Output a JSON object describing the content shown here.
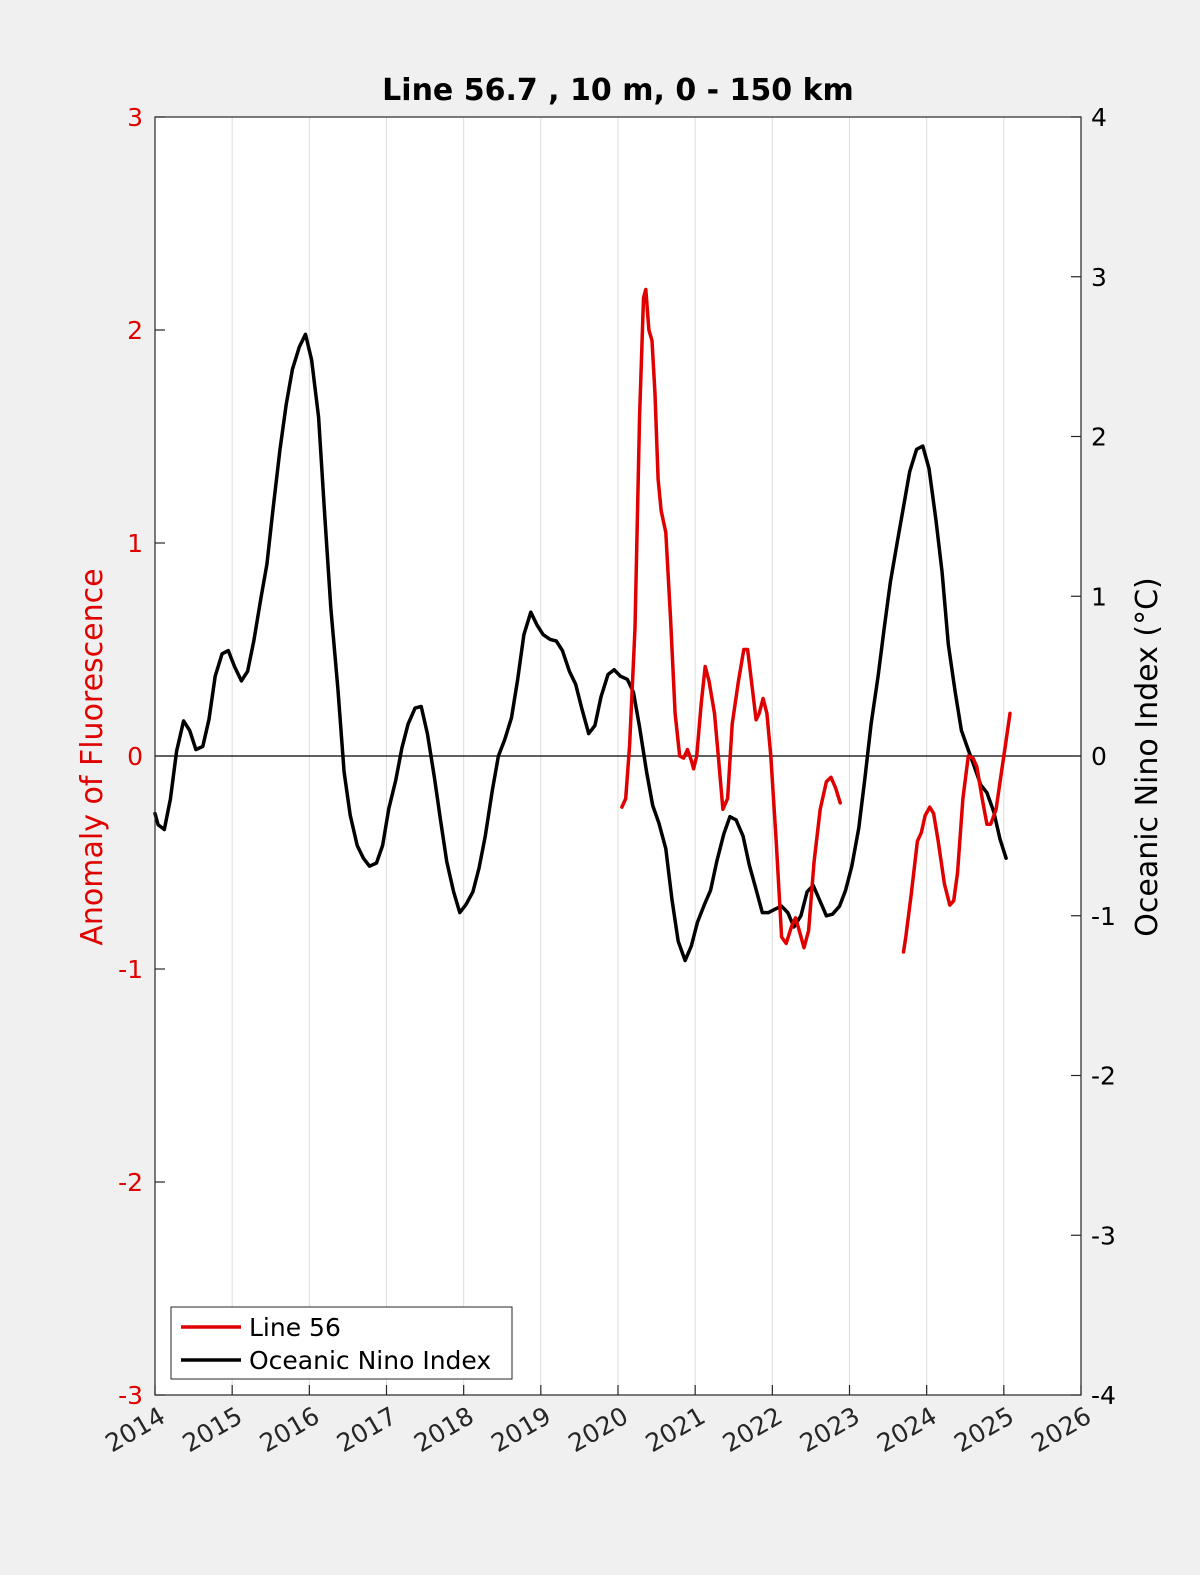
{
  "chart_data": {
    "type": "line",
    "title": "Line 56.7 , 10 m, 0 - 150 km",
    "xlabel": "",
    "ylabel_left": "Anomaly of Fluorescence",
    "ylabel_right": "Oceanic Nino Index (°C)",
    "xlim": [
      2014,
      2026
    ],
    "ylim_left": [
      -3,
      3
    ],
    "ylim_right": [
      -4,
      4
    ],
    "x_ticks": [
      "2014",
      "2015",
      "2016",
      "2017",
      "2018",
      "2019",
      "2020",
      "2021",
      "2022",
      "2023",
      "2024",
      "2025",
      "2026"
    ],
    "left_ticks": [
      "-3",
      "-2",
      "-1",
      "0",
      "1",
      "2",
      "3"
    ],
    "right_ticks": [
      "-4",
      "-3",
      "-2",
      "-1",
      "0",
      "1",
      "2",
      "3",
      "4"
    ],
    "grid": "vertical",
    "legend_position": "bottom-left",
    "colors": {
      "left_axis": "#e00000",
      "line56": "#e00000",
      "oni": "#000000"
    },
    "series": [
      {
        "name": "Line 56",
        "axis": "left",
        "segments": [
          [
            [
              2020.05,
              -0.24
            ],
            [
              2020.1,
              -0.2
            ],
            [
              2020.15,
              0.05
            ],
            [
              2020.22,
              0.6
            ],
            [
              2020.28,
              1.6
            ],
            [
              2020.33,
              2.15
            ],
            [
              2020.36,
              2.19
            ],
            [
              2020.4,
              2.0
            ],
            [
              2020.44,
              1.95
            ],
            [
              2020.48,
              1.7
            ],
            [
              2020.52,
              1.3
            ],
            [
              2020.56,
              1.15
            ],
            [
              2020.62,
              1.05
            ],
            [
              2020.68,
              0.65
            ],
            [
              2020.74,
              0.2
            ],
            [
              2020.8,
              0.0
            ],
            [
              2020.85,
              -0.01
            ],
            [
              2020.9,
              0.03
            ],
            [
              2020.95,
              -0.02
            ],
            [
              2020.98,
              -0.06
            ],
            [
              2021.02,
              0.0
            ],
            [
              2021.08,
              0.25
            ],
            [
              2021.13,
              0.42
            ],
            [
              2021.18,
              0.35
            ],
            [
              2021.25,
              0.2
            ],
            [
              2021.3,
              0.0
            ],
            [
              2021.36,
              -0.25
            ],
            [
              2021.42,
              -0.2
            ],
            [
              2021.48,
              0.15
            ],
            [
              2021.56,
              0.35
            ],
            [
              2021.63,
              0.5
            ],
            [
              2021.68,
              0.5
            ],
            [
              2021.73,
              0.35
            ],
            [
              2021.79,
              0.17
            ],
            [
              2021.83,
              0.2
            ],
            [
              2021.88,
              0.27
            ],
            [
              2021.93,
              0.2
            ],
            [
              2021.98,
              0.0
            ],
            [
              2022.05,
              -0.4
            ],
            [
              2022.12,
              -0.85
            ],
            [
              2022.18,
              -0.88
            ],
            [
              2022.25,
              -0.8
            ],
            [
              2022.3,
              -0.76
            ],
            [
              2022.35,
              -0.82
            ],
            [
              2022.41,
              -0.9
            ],
            [
              2022.47,
              -0.82
            ],
            [
              2022.54,
              -0.5
            ],
            [
              2022.62,
              -0.25
            ],
            [
              2022.7,
              -0.12
            ],
            [
              2022.76,
              -0.1
            ],
            [
              2022.82,
              -0.15
            ],
            [
              2022.88,
              -0.22
            ]
          ],
          [
            [
              2023.7,
              -0.92
            ],
            [
              2023.73,
              -0.85
            ],
            [
              2023.8,
              -0.65
            ],
            [
              2023.88,
              -0.4
            ],
            [
              2023.93,
              -0.36
            ],
            [
              2023.98,
              -0.28
            ],
            [
              2024.04,
              -0.24
            ],
            [
              2024.09,
              -0.27
            ],
            [
              2024.15,
              -0.4
            ],
            [
              2024.23,
              -0.6
            ],
            [
              2024.3,
              -0.7
            ],
            [
              2024.35,
              -0.68
            ],
            [
              2024.4,
              -0.55
            ],
            [
              2024.47,
              -0.2
            ],
            [
              2024.54,
              0.0
            ],
            [
              2024.6,
              -0.01
            ],
            [
              2024.65,
              -0.05
            ],
            [
              2024.72,
              -0.2
            ],
            [
              2024.78,
              -0.32
            ],
            [
              2024.83,
              -0.32
            ],
            [
              2024.9,
              -0.25
            ],
            [
              2024.96,
              -0.1
            ],
            [
              2025.02,
              0.05
            ],
            [
              2025.08,
              0.2
            ]
          ]
        ]
      },
      {
        "name": "Oceanic Nino Index",
        "axis": "right",
        "points": [
          [
            2014.0,
            -0.36
          ],
          [
            2014.04,
            -0.43
          ],
          [
            2014.12,
            -0.46
          ],
          [
            2014.2,
            -0.27
          ],
          [
            2014.28,
            0.03
          ],
          [
            2014.37,
            0.22
          ],
          [
            2014.45,
            0.16
          ],
          [
            2014.53,
            0.04
          ],
          [
            2014.62,
            0.06
          ],
          [
            2014.7,
            0.23
          ],
          [
            2014.78,
            0.5
          ],
          [
            2014.87,
            0.64
          ],
          [
            2014.95,
            0.66
          ],
          [
            2015.03,
            0.56
          ],
          [
            2015.12,
            0.47
          ],
          [
            2015.2,
            0.53
          ],
          [
            2015.28,
            0.72
          ],
          [
            2015.37,
            0.98
          ],
          [
            2015.45,
            1.2
          ],
          [
            2015.53,
            1.55
          ],
          [
            2015.62,
            1.92
          ],
          [
            2015.7,
            2.2
          ],
          [
            2015.78,
            2.42
          ],
          [
            2015.87,
            2.56
          ],
          [
            2015.95,
            2.64
          ],
          [
            2016.03,
            2.48
          ],
          [
            2016.12,
            2.12
          ],
          [
            2016.2,
            1.5
          ],
          [
            2016.28,
            0.92
          ],
          [
            2016.37,
            0.42
          ],
          [
            2016.45,
            -0.1
          ],
          [
            2016.53,
            -0.37
          ],
          [
            2016.62,
            -0.56
          ],
          [
            2016.7,
            -0.64
          ],
          [
            2016.78,
            -0.69
          ],
          [
            2016.87,
            -0.67
          ],
          [
            2016.95,
            -0.56
          ],
          [
            2017.03,
            -0.33
          ],
          [
            2017.12,
            -0.15
          ],
          [
            2017.2,
            0.05
          ],
          [
            2017.28,
            0.2
          ],
          [
            2017.37,
            0.3
          ],
          [
            2017.45,
            0.31
          ],
          [
            2017.53,
            0.14
          ],
          [
            2017.62,
            -0.13
          ],
          [
            2017.7,
            -0.4
          ],
          [
            2017.78,
            -0.66
          ],
          [
            2017.87,
            -0.85
          ],
          [
            2017.95,
            -0.98
          ],
          [
            2018.03,
            -0.93
          ],
          [
            2018.12,
            -0.85
          ],
          [
            2018.2,
            -0.7
          ],
          [
            2018.28,
            -0.5
          ],
          [
            2018.37,
            -0.22
          ],
          [
            2018.45,
            0.0
          ],
          [
            2018.53,
            0.1
          ],
          [
            2018.62,
            0.24
          ],
          [
            2018.7,
            0.48
          ],
          [
            2018.78,
            0.76
          ],
          [
            2018.87,
            0.9
          ],
          [
            2018.95,
            0.82
          ],
          [
            2019.03,
            0.76
          ],
          [
            2019.12,
            0.73
          ],
          [
            2019.2,
            0.72
          ],
          [
            2019.28,
            0.66
          ],
          [
            2019.37,
            0.53
          ],
          [
            2019.45,
            0.45
          ],
          [
            2019.53,
            0.3
          ],
          [
            2019.62,
            0.14
          ],
          [
            2019.7,
            0.19
          ],
          [
            2019.78,
            0.37
          ],
          [
            2019.87,
            0.51
          ],
          [
            2019.95,
            0.54
          ],
          [
            2020.03,
            0.5
          ],
          [
            2020.12,
            0.48
          ],
          [
            2020.2,
            0.4
          ],
          [
            2020.28,
            0.18
          ],
          [
            2020.37,
            -0.1
          ],
          [
            2020.45,
            -0.31
          ],
          [
            2020.53,
            -0.42
          ],
          [
            2020.62,
            -0.58
          ],
          [
            2020.7,
            -0.9
          ],
          [
            2020.78,
            -1.16
          ],
          [
            2020.87,
            -1.28
          ],
          [
            2020.95,
            -1.19
          ],
          [
            2021.03,
            -1.04
          ],
          [
            2021.12,
            -0.93
          ],
          [
            2021.2,
            -0.84
          ],
          [
            2021.28,
            -0.66
          ],
          [
            2021.37,
            -0.49
          ],
          [
            2021.45,
            -0.38
          ],
          [
            2021.53,
            -0.4
          ],
          [
            2021.62,
            -0.5
          ],
          [
            2021.7,
            -0.68
          ],
          [
            2021.78,
            -0.82
          ],
          [
            2021.87,
            -0.98
          ],
          [
            2021.95,
            -0.98
          ],
          [
            2022.03,
            -0.96
          ],
          [
            2022.12,
            -0.94
          ],
          [
            2022.2,
            -0.98
          ],
          [
            2022.28,
            -1.07
          ],
          [
            2022.37,
            -1.0
          ],
          [
            2022.45,
            -0.85
          ],
          [
            2022.53,
            -0.81
          ],
          [
            2022.62,
            -0.91
          ],
          [
            2022.7,
            -1.0
          ],
          [
            2022.78,
            -0.99
          ],
          [
            2022.87,
            -0.94
          ],
          [
            2022.95,
            -0.84
          ],
          [
            2023.03,
            -0.69
          ],
          [
            2023.12,
            -0.45
          ],
          [
            2023.2,
            -0.14
          ],
          [
            2023.28,
            0.2
          ],
          [
            2023.37,
            0.5
          ],
          [
            2023.45,
            0.8
          ],
          [
            2023.53,
            1.09
          ],
          [
            2023.62,
            1.34
          ],
          [
            2023.7,
            1.56
          ],
          [
            2023.78,
            1.78
          ],
          [
            2023.87,
            1.92
          ],
          [
            2023.95,
            1.94
          ],
          [
            2024.03,
            1.8
          ],
          [
            2024.12,
            1.48
          ],
          [
            2024.2,
            1.15
          ],
          [
            2024.28,
            0.7
          ],
          [
            2024.37,
            0.4
          ],
          [
            2024.45,
            0.16
          ],
          [
            2024.53,
            0.05
          ],
          [
            2024.62,
            -0.07
          ],
          [
            2024.7,
            -0.18
          ],
          [
            2024.78,
            -0.23
          ],
          [
            2024.87,
            -0.35
          ],
          [
            2024.95,
            -0.52
          ],
          [
            2025.03,
            -0.64
          ]
        ]
      }
    ]
  }
}
